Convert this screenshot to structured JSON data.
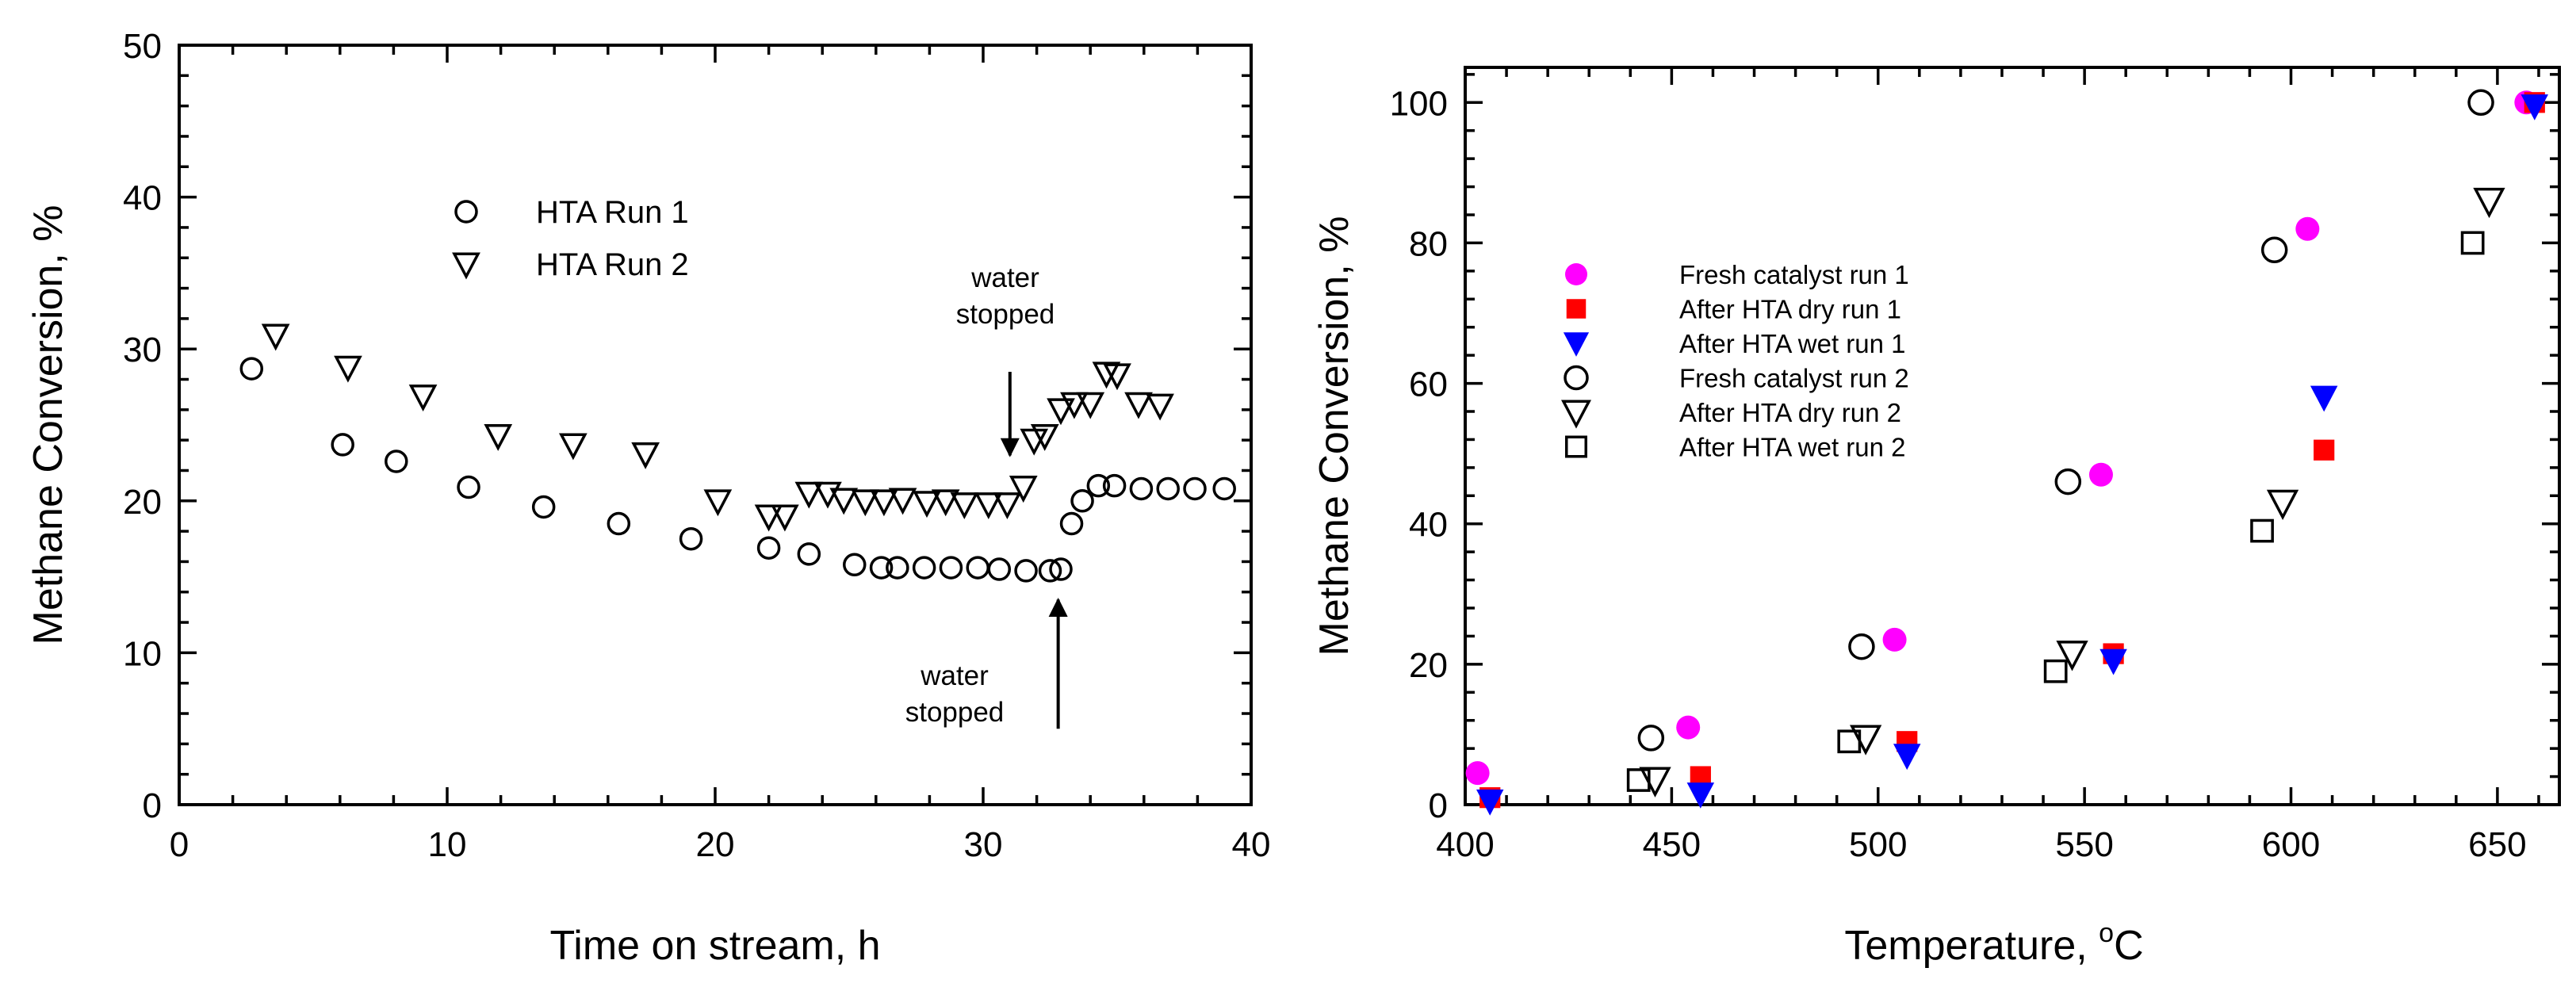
{
  "chart_data": [
    {
      "id": "left",
      "type": "scatter",
      "title": "",
      "xlabel": "Time on stream, h",
      "ylabel": "Methane Conversion, %",
      "xlim": [
        0,
        40
      ],
      "ylim": [
        0,
        50
      ],
      "xticks": [
        0,
        10,
        20,
        30,
        40
      ],
      "yticks": [
        0,
        10,
        20,
        30,
        40,
        50
      ],
      "xtick_labels": [
        "0",
        "10",
        "20",
        "30",
        "40"
      ],
      "ytick_labels": [
        "0",
        "10",
        "20",
        "30",
        "40",
        "50"
      ],
      "x_minor_step": 2,
      "y_minor_step": 2,
      "legend_position": "upper-center",
      "series": [
        {
          "name": "HTA Run 1",
          "marker": "circle-open",
          "color": "#000000",
          "points": [
            [
              2.7,
              28.7
            ],
            [
              6.1,
              23.7
            ],
            [
              8.1,
              22.6
            ],
            [
              10.8,
              20.9
            ],
            [
              13.6,
              19.6
            ],
            [
              16.4,
              18.5
            ],
            [
              19.1,
              17.5
            ],
            [
              22.0,
              16.9
            ],
            [
              23.5,
              16.5
            ],
            [
              25.2,
              15.8
            ],
            [
              26.2,
              15.6
            ],
            [
              26.8,
              15.6
            ],
            [
              27.8,
              15.6
            ],
            [
              28.8,
              15.6
            ],
            [
              29.8,
              15.6
            ],
            [
              30.6,
              15.5
            ],
            [
              31.6,
              15.4
            ],
            [
              32.5,
              15.4
            ],
            [
              32.9,
              15.5
            ],
            [
              33.3,
              18.5
            ],
            [
              33.7,
              20.0
            ],
            [
              34.3,
              21.0
            ],
            [
              34.9,
              21.0
            ],
            [
              35.9,
              20.8
            ],
            [
              36.9,
              20.8
            ],
            [
              37.9,
              20.8
            ],
            [
              39.0,
              20.8
            ]
          ]
        },
        {
          "name": "HTA Run 2",
          "marker": "triangle-down-open",
          "color": "#000000",
          "points": [
            [
              3.6,
              30.9
            ],
            [
              6.3,
              28.8
            ],
            [
              9.1,
              26.9
            ],
            [
              11.9,
              24.3
            ],
            [
              14.7,
              23.7
            ],
            [
              17.4,
              23.1
            ],
            [
              20.1,
              20.0
            ],
            [
              22.0,
              19.0
            ],
            [
              22.6,
              19.0
            ],
            [
              23.5,
              20.5
            ],
            [
              24.2,
              20.5
            ],
            [
              24.8,
              20.1
            ],
            [
              25.6,
              20.0
            ],
            [
              26.3,
              20.0
            ],
            [
              27.0,
              20.1
            ],
            [
              27.9,
              19.9
            ],
            [
              28.6,
              20.0
            ],
            [
              29.3,
              19.8
            ],
            [
              30.2,
              19.8
            ],
            [
              30.9,
              19.8
            ],
            [
              31.5,
              20.9
            ],
            [
              31.9,
              24.0
            ],
            [
              32.3,
              24.3
            ],
            [
              32.9,
              26.0
            ],
            [
              33.4,
              26.4
            ],
            [
              34.0,
              26.4
            ],
            [
              34.6,
              28.4
            ],
            [
              35.0,
              28.3
            ],
            [
              35.8,
              26.4
            ],
            [
              36.6,
              26.3
            ]
          ]
        }
      ],
      "annotations": [
        {
          "lines": [
            "water",
            "stopped"
          ],
          "arrow_from": [
            31.0,
            28.5
          ],
          "arrow_to": [
            31.0,
            23.0
          ]
        },
        {
          "lines": [
            "water",
            "stopped"
          ],
          "arrow_from": [
            32.8,
            5.0
          ],
          "arrow_to": [
            32.8,
            13.5
          ]
        }
      ]
    },
    {
      "id": "right",
      "type": "scatter",
      "title": "",
      "xlabel_main": "Temperature, ",
      "xlabel_super": "o",
      "xlabel_tail": "C",
      "ylabel": "Methane Conversion, %",
      "xlim": [
        400,
        665
      ],
      "ylim": [
        0,
        105
      ],
      "xticks": [
        400,
        450,
        500,
        550,
        600,
        650
      ],
      "yticks": [
        0,
        20,
        40,
        60,
        80,
        100
      ],
      "xtick_labels": [
        "400",
        "450",
        "500",
        "550",
        "600",
        "650"
      ],
      "ytick_labels": [
        "0",
        "20",
        "40",
        "60",
        "80",
        "100"
      ],
      "x_minor_step": 10,
      "y_minor_step": 4,
      "legend_position": "upper-left",
      "series": [
        {
          "name": "Fresh catalyst run 1",
          "marker": "circle-filled",
          "color": "#ff00ff",
          "points": [
            [
              403,
              4.5
            ],
            [
              454,
              11
            ],
            [
              504,
              23.5
            ],
            [
              554,
              47
            ],
            [
              604,
              82
            ],
            [
              657,
              100
            ]
          ]
        },
        {
          "name": "After HTA dry run 1",
          "marker": "square-filled",
          "color": "#ff0000",
          "points": [
            [
              406,
              1.0
            ],
            [
              457,
              4.0
            ],
            [
              507,
              9.0
            ],
            [
              557,
              21.5
            ],
            [
              608,
              50.5
            ],
            [
              659,
              100
            ]
          ]
        },
        {
          "name": "After HTA wet run 1",
          "marker": "triangle-down-filled",
          "color": "#0000ff",
          "points": [
            [
              406,
              0.5
            ],
            [
              457,
              1.5
            ],
            [
              507,
              7.0
            ],
            [
              557,
              20.5
            ],
            [
              608,
              58
            ],
            [
              659,
              99.5
            ]
          ]
        },
        {
          "name": "Fresh catalyst run 2",
          "marker": "circle-open",
          "color": "#000000",
          "points": [
            [
              445,
              9.5
            ],
            [
              496,
              22.5
            ],
            [
              546,
              46
            ],
            [
              596,
              79
            ],
            [
              646,
              100
            ]
          ]
        },
        {
          "name": "After HTA dry run 2",
          "marker": "triangle-down-open",
          "color": "#000000",
          "points": [
            [
              446,
              3.5
            ],
            [
              497,
              9.5
            ],
            [
              547,
              21.5
            ],
            [
              598,
              43
            ],
            [
              648,
              86
            ]
          ]
        },
        {
          "name": "After HTA wet run 2",
          "marker": "square-open",
          "color": "#000000",
          "points": [
            [
              442,
              3.5
            ],
            [
              493,
              9.0
            ],
            [
              543,
              19.0
            ],
            [
              593,
              39
            ],
            [
              644,
              80
            ]
          ]
        }
      ]
    }
  ]
}
